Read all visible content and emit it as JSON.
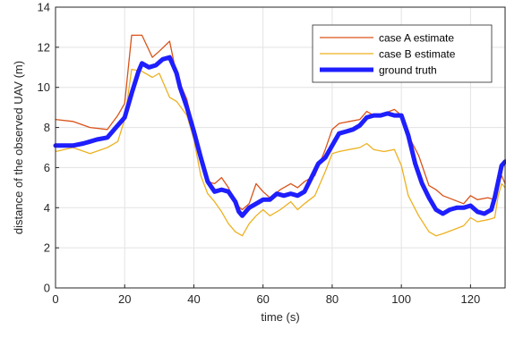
{
  "chart_data": {
    "type": "line",
    "xlabel": "time (s)",
    "ylabel": "distance of the observed UAV (m)",
    "xlim": [
      0,
      130
    ],
    "ylim": [
      0,
      14
    ],
    "xticks": [
      0,
      20,
      40,
      60,
      80,
      100,
      120
    ],
    "yticks": [
      0,
      2,
      4,
      6,
      8,
      10,
      12,
      14
    ],
    "grid": true,
    "legend_position": "top-right",
    "series": [
      {
        "name": "case A estimate",
        "color": "#D95319",
        "x": [
          0,
          5,
          10,
          15,
          18,
          20,
          22,
          25,
          28,
          30,
          33,
          35,
          38,
          40,
          42,
          44,
          46,
          48,
          50,
          52,
          54,
          56,
          58,
          60,
          62,
          65,
          68,
          70,
          72,
          75,
          78,
          80,
          82,
          85,
          88,
          90,
          92,
          95,
          98,
          100,
          102,
          105,
          108,
          110,
          112,
          115,
          118,
          120,
          122,
          125,
          127,
          128,
          129,
          130
        ],
        "values": [
          8.4,
          8.3,
          8.0,
          7.9,
          8.6,
          9.2,
          12.6,
          12.6,
          11.5,
          11.8,
          12.3,
          10.6,
          9.4,
          7.8,
          6.5,
          5.3,
          5.2,
          5.5,
          5.0,
          4.2,
          3.9,
          4.2,
          5.2,
          4.8,
          4.5,
          4.9,
          5.2,
          5.0,
          5.3,
          5.6,
          6.9,
          7.9,
          8.2,
          8.3,
          8.4,
          8.8,
          8.6,
          8.7,
          8.9,
          8.6,
          7.6,
          6.6,
          5.1,
          4.9,
          4.6,
          4.4,
          4.2,
          4.6,
          4.4,
          4.5,
          4.4,
          5.1,
          5.6,
          5.2
        ]
      },
      {
        "name": "case B estimate",
        "color": "#EDB120",
        "x": [
          0,
          5,
          10,
          15,
          18,
          20,
          22,
          25,
          28,
          30,
          33,
          35,
          38,
          40,
          42,
          44,
          46,
          48,
          50,
          52,
          54,
          56,
          58,
          60,
          62,
          65,
          68,
          70,
          72,
          75,
          78,
          80,
          82,
          85,
          88,
          90,
          92,
          95,
          98,
          100,
          102,
          105,
          108,
          110,
          112,
          115,
          118,
          120,
          122,
          125,
          127,
          128,
          129,
          130
        ],
        "values": [
          6.8,
          7.0,
          6.7,
          7.0,
          7.3,
          8.4,
          10.9,
          10.8,
          10.5,
          10.7,
          9.5,
          9.3,
          8.6,
          7.4,
          5.6,
          4.7,
          4.3,
          3.8,
          3.2,
          2.8,
          2.6,
          3.2,
          3.6,
          3.9,
          3.6,
          3.9,
          4.3,
          3.9,
          4.2,
          4.6,
          5.8,
          6.7,
          6.8,
          6.9,
          7.0,
          7.2,
          6.9,
          6.8,
          6.9,
          6.1,
          4.6,
          3.6,
          2.8,
          2.6,
          2.7,
          2.9,
          3.1,
          3.5,
          3.3,
          3.4,
          3.5,
          4.6,
          5.2,
          5.0
        ]
      },
      {
        "name": "ground truth",
        "color": "#1E1EFF",
        "x": [
          0,
          2,
          5,
          8,
          10,
          12,
          15,
          17,
          20,
          22,
          24,
          25,
          27,
          29,
          31,
          33,
          35,
          36,
          38,
          40,
          42,
          44,
          46,
          48,
          50,
          52,
          53,
          54,
          56,
          58,
          60,
          62,
          64,
          66,
          68,
          70,
          72,
          74,
          76,
          78,
          80,
          82,
          84,
          86,
          88,
          90,
          92,
          94,
          96,
          98,
          100,
          102,
          104,
          106,
          108,
          110,
          112,
          114,
          116,
          118,
          120,
          122,
          124,
          126,
          127,
          128,
          129,
          130
        ],
        "values": [
          7.1,
          7.1,
          7.1,
          7.2,
          7.3,
          7.4,
          7.5,
          7.9,
          8.5,
          9.7,
          10.8,
          11.2,
          11.0,
          11.1,
          11.4,
          11.5,
          10.7,
          10.0,
          9.0,
          7.8,
          6.5,
          5.3,
          4.8,
          4.9,
          4.8,
          4.3,
          3.8,
          3.6,
          4.0,
          4.2,
          4.4,
          4.4,
          4.7,
          4.6,
          4.7,
          4.6,
          4.8,
          5.5,
          6.2,
          6.5,
          7.1,
          7.7,
          7.8,
          7.9,
          8.1,
          8.5,
          8.6,
          8.6,
          8.7,
          8.6,
          8.6,
          7.6,
          6.2,
          5.2,
          4.5,
          3.9,
          3.7,
          3.9,
          4.0,
          4.0,
          4.1,
          3.8,
          3.7,
          3.9,
          4.5,
          5.3,
          6.1,
          6.3
        ]
      }
    ]
  }
}
